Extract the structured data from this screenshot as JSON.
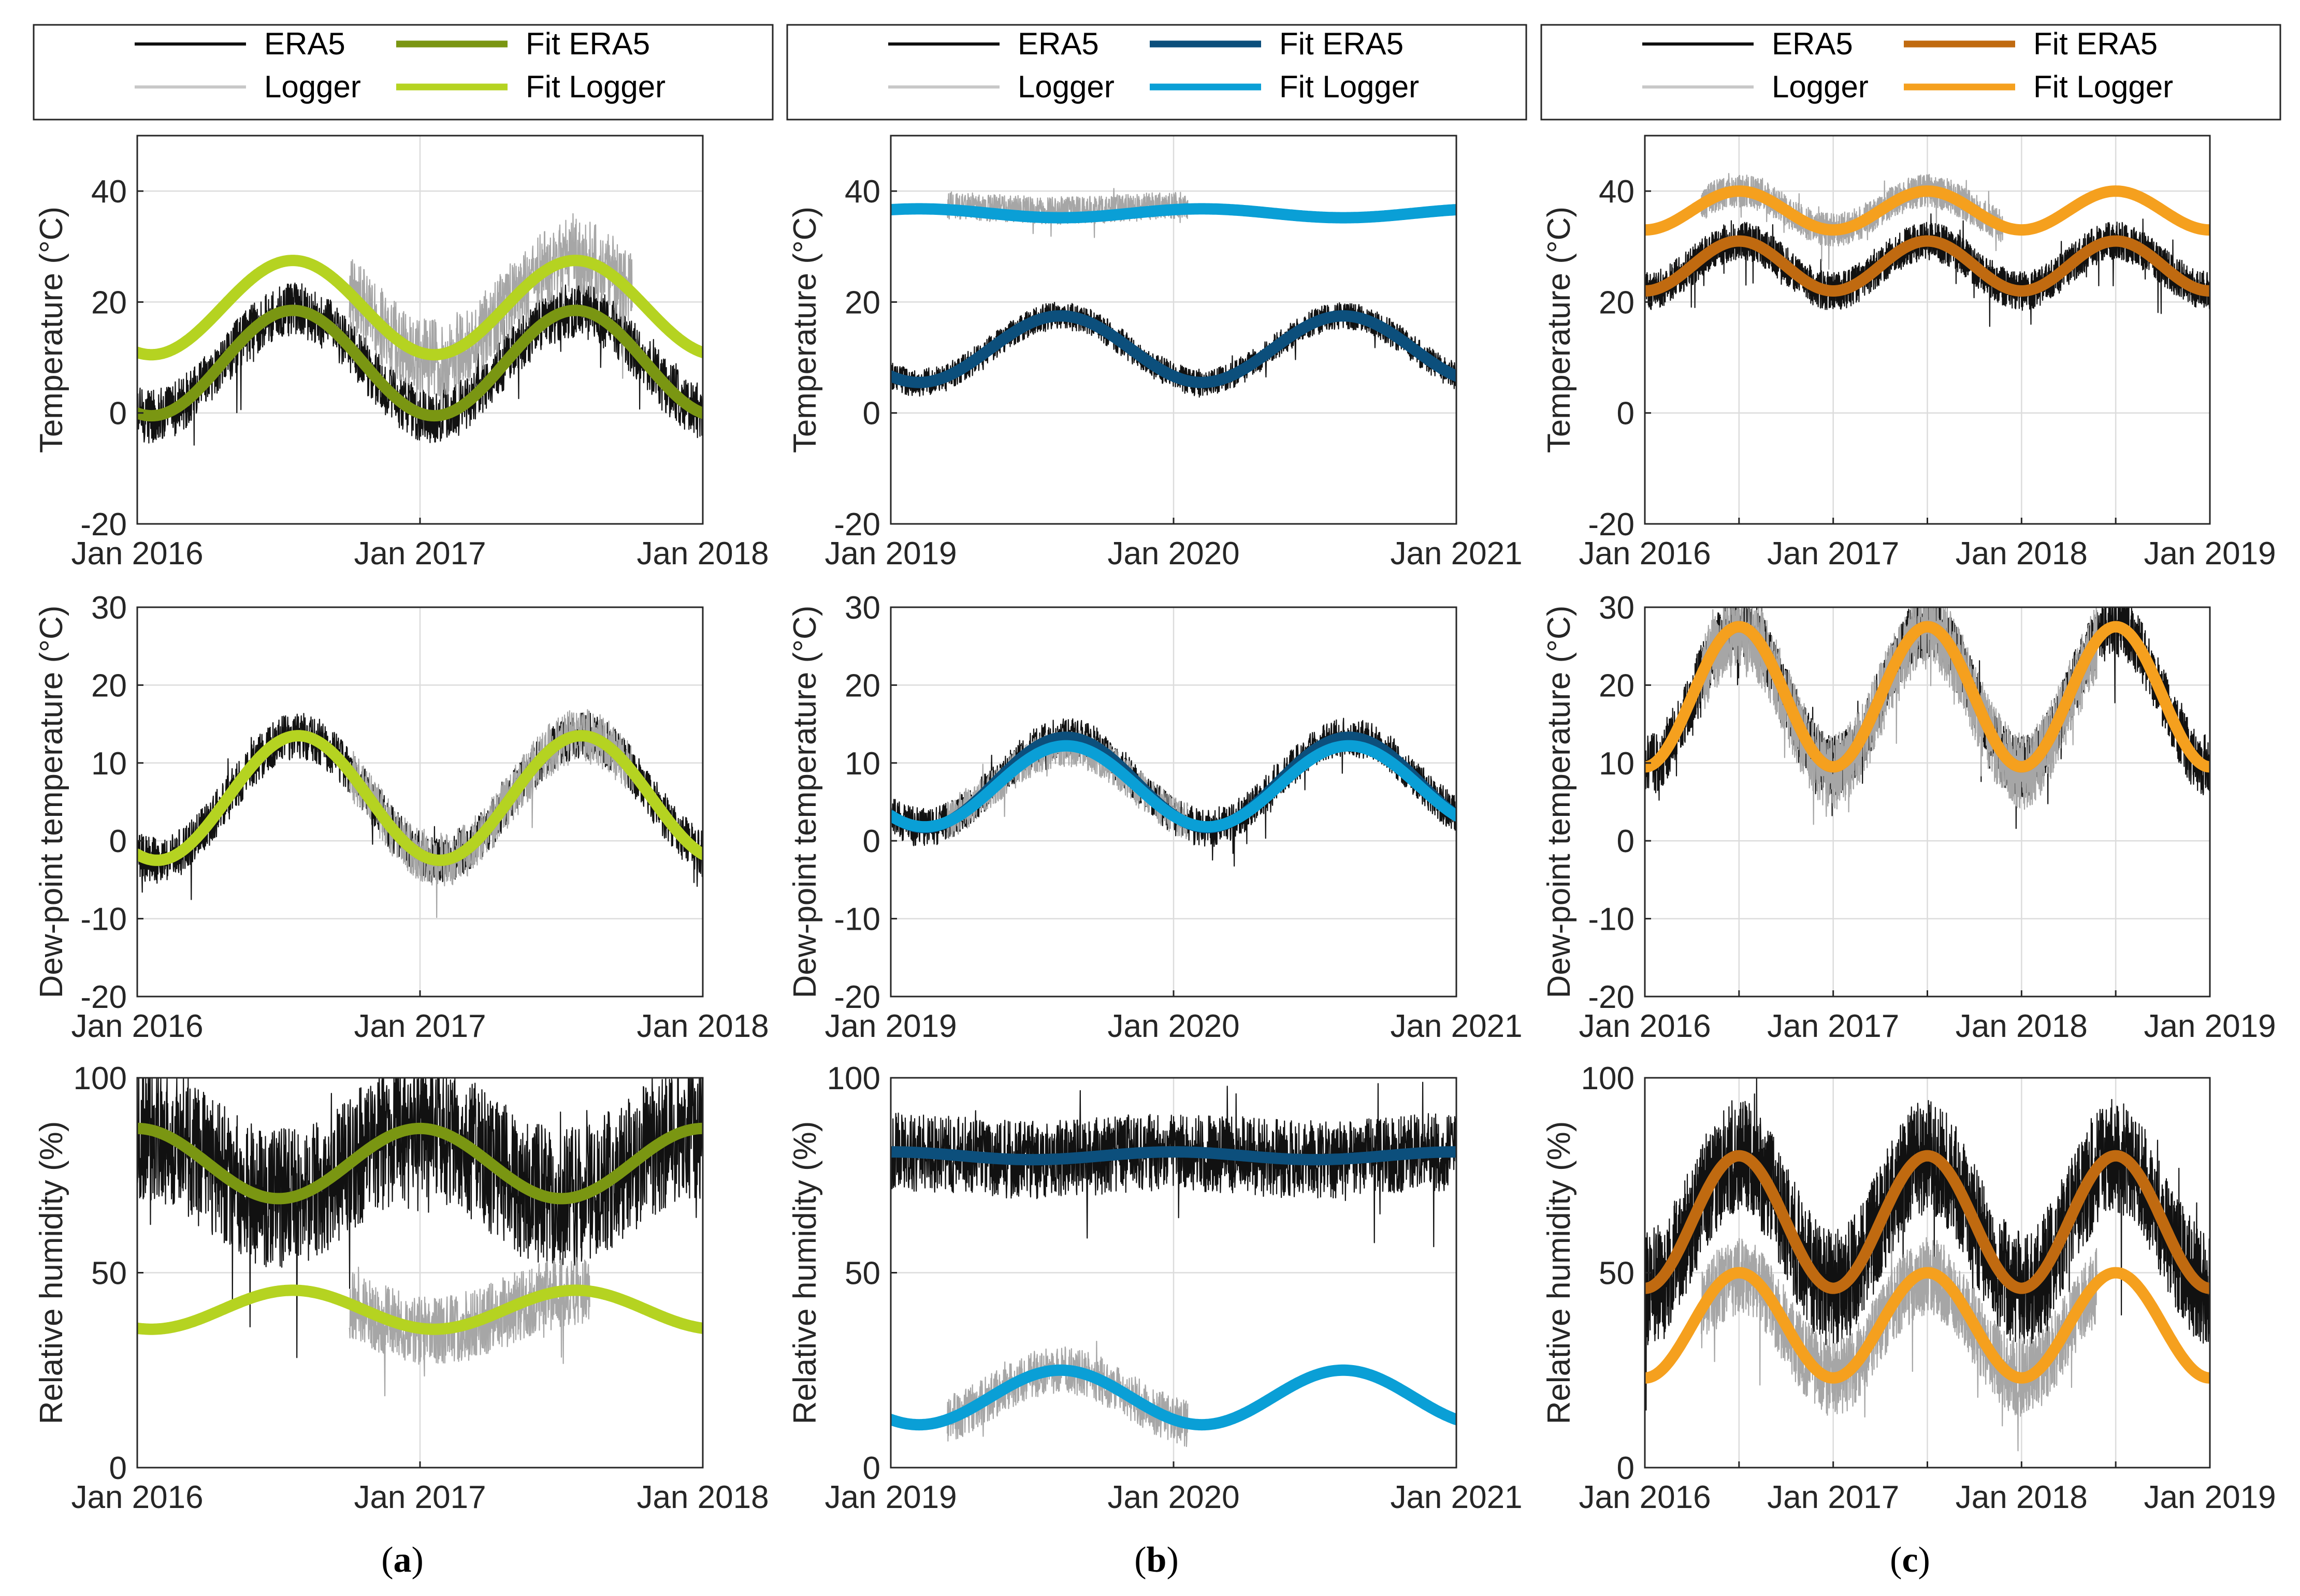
{
  "figure": {
    "captions": [
      "(a)",
      "(b)",
      "(c)"
    ],
    "caption_letters": [
      "a",
      "b",
      "c"
    ]
  },
  "chart_data": [
    {
      "column": "a",
      "row": "temperature",
      "type": "line",
      "ylabel": "Temperature (°C)",
      "ylim": [
        -20,
        50
      ],
      "yticks": [
        -20,
        0,
        20,
        40
      ],
      "xlim": [
        2016,
        2018
      ],
      "xticks": [
        2016,
        2017,
        2018
      ],
      "xticklabels": [
        "Jan 2016",
        "Jan 2017",
        "Jan 2018"
      ],
      "grid": true,
      "era5": {
        "name": "ERA5",
        "mean": 9,
        "amp": 9.5,
        "peak": 0.55,
        "noise": 5,
        "start": 2016,
        "end": 2018,
        "color": "#111111"
      },
      "logger": {
        "name": "Logger",
        "mean": 19,
        "amp": 9,
        "peak": 0.55,
        "noise": 7,
        "start": 2016.75,
        "end": 2017.75,
        "color": "#a6a6a6"
      },
      "fit_era5": {
        "name": "Fit ERA5",
        "mean": 9,
        "amp": 9.5,
        "peak": 0.55,
        "color": "#7a9612"
      },
      "fit_logger": {
        "name": "Fit Logger",
        "mean": 19,
        "amp": 8.5,
        "peak": 0.55,
        "color": "#b5d321"
      }
    },
    {
      "column": "a",
      "row": "dewpoint",
      "type": "line",
      "ylabel": "Dew-point temperature (°C)",
      "ylim": [
        -20,
        30
      ],
      "yticks": [
        -20,
        -10,
        0,
        10,
        20,
        30
      ],
      "xlim": [
        2016,
        2018
      ],
      "xticks": [
        2016,
        2017,
        2018
      ],
      "xticklabels": [
        "Jan 2016",
        "Jan 2017",
        "Jan 2018"
      ],
      "grid": true,
      "era5": {
        "name": "ERA5",
        "mean": 5.5,
        "amp": 8,
        "peak": 0.57,
        "noise": 3,
        "start": 2016,
        "end": 2018,
        "color": "#111111"
      },
      "logger": {
        "name": "Logger",
        "mean": 5.5,
        "amp": 8,
        "peak": 0.57,
        "noise": 3.5,
        "start": 2016.75,
        "end": 2017.75,
        "color": "#a6a6a6"
      },
      "fit_era5": {
        "name": "Fit ERA5",
        "mean": 5.5,
        "amp": 8,
        "peak": 0.57,
        "color": "#7a9612"
      },
      "fit_logger": {
        "name": "Fit Logger",
        "mean": 5.5,
        "amp": 8,
        "peak": 0.57,
        "color": "#b5d321"
      }
    },
    {
      "column": "a",
      "row": "humidity",
      "type": "line",
      "ylabel": "Relative humidity (%)",
      "ylim": [
        0,
        100
      ],
      "yticks": [
        0,
        50,
        100
      ],
      "xlim": [
        2016,
        2018
      ],
      "xticks": [
        2016,
        2017,
        2018
      ],
      "xticklabels": [
        "Jan 2016",
        "Jan 2017",
        "Jan 2018"
      ],
      "grid": true,
      "era5": {
        "name": "ERA5",
        "mean": 78,
        "amp": 9,
        "peak": 0.0,
        "noise": 18,
        "start": 2016,
        "end": 2018,
        "color": "#111111"
      },
      "logger": {
        "name": "Logger",
        "mean": 40,
        "amp": 5,
        "peak": 0.55,
        "noise": 9,
        "start": 2016.75,
        "end": 2017.6,
        "color": "#a6a6a6"
      },
      "fit_era5": {
        "name": "Fit ERA5",
        "mean": 78,
        "amp": 9,
        "peak": 0.0,
        "color": "#7a9612"
      },
      "fit_logger": {
        "name": "Fit Logger",
        "mean": 40.5,
        "amp": 5,
        "peak": 0.55,
        "color": "#b5d321"
      }
    },
    {
      "column": "b",
      "row": "temperature",
      "type": "line",
      "ylabel": "Temperature (°C)",
      "ylim": [
        -20,
        50
      ],
      "yticks": [
        -20,
        0,
        20,
        40
      ],
      "xlim": [
        2019,
        2021
      ],
      "xticks": [
        2019,
        2020,
        2021
      ],
      "xticklabels": [
        "Jan 2019",
        "Jan 2020",
        "Jan 2021"
      ],
      "grid": true,
      "era5": {
        "name": "ERA5",
        "mean": 11.5,
        "amp": 6,
        "peak": 0.6,
        "noise": 2.5,
        "start": 2019,
        "end": 2021,
        "color": "#111111"
      },
      "logger": {
        "name": "Logger",
        "mean": 37,
        "amp": 0.5,
        "peak": 0.1,
        "noise": 2.5,
        "start": 2019.2,
        "end": 2020.05,
        "color": "#a6a6a6"
      },
      "fit_era5": {
        "name": "Fit ERA5",
        "mean": 11.5,
        "amp": 6,
        "peak": 0.6,
        "color": "#0c4f7c"
      },
      "fit_logger": {
        "name": "Fit Logger",
        "mean": 36,
        "amp": 0.8,
        "peak": 0.1,
        "color": "#0a9fd6"
      }
    },
    {
      "column": "b",
      "row": "dewpoint",
      "type": "line",
      "ylabel": "Dew-point temperature (°C)",
      "ylim": [
        -20,
        30
      ],
      "yticks": [
        -20,
        -10,
        0,
        10,
        20,
        30
      ],
      "xlim": [
        2019,
        2021
      ],
      "xticks": [
        2019,
        2020,
        2021
      ],
      "xticklabels": [
        "Jan 2019",
        "Jan 2020",
        "Jan 2021"
      ],
      "grid": true,
      "era5": {
        "name": "ERA5",
        "mean": 7.5,
        "amp": 5.8,
        "peak": 0.62,
        "noise": 2.5,
        "start": 2019,
        "end": 2021,
        "color": "#111111"
      },
      "logger": {
        "name": "Logger",
        "mean": 7,
        "amp": 5,
        "peak": 0.62,
        "noise": 2.5,
        "start": 2019.2,
        "end": 2020.05,
        "color": "#a6a6a6"
      },
      "fit_era5": {
        "name": "Fit ERA5",
        "mean": 7.5,
        "amp": 5.8,
        "peak": 0.62,
        "color": "#0c4f7c"
      },
      "fit_logger": {
        "name": "Fit Logger",
        "mean": 7,
        "amp": 5.2,
        "peak": 0.62,
        "color": "#0a9fd6"
      }
    },
    {
      "column": "b",
      "row": "humidity",
      "type": "line",
      "ylabel": "Relative humidity (%)",
      "ylim": [
        0,
        100
      ],
      "yticks": [
        0,
        50,
        100
      ],
      "xlim": [
        2019,
        2021
      ],
      "xticks": [
        2019,
        2020,
        2021
      ],
      "xticklabels": [
        "Jan 2019",
        "Jan 2020",
        "Jan 2021"
      ],
      "grid": true,
      "era5": {
        "name": "ERA5",
        "mean": 80,
        "amp": 1,
        "peak": 0.0,
        "noise": 10,
        "start": 2019,
        "end": 2021,
        "color": "#111111"
      },
      "logger": {
        "name": "Logger",
        "mean": 18,
        "amp": 7,
        "peak": 0.6,
        "noise": 6,
        "start": 2019.2,
        "end": 2020.05,
        "color": "#a6a6a6"
      },
      "fit_era5": {
        "name": "Fit ERA5",
        "mean": 80,
        "amp": 1,
        "peak": 0.0,
        "color": "#0c4f7c"
      },
      "fit_logger": {
        "name": "Fit Logger",
        "mean": 18,
        "amp": 7,
        "peak": 0.6,
        "color": "#0a9fd6"
      }
    },
    {
      "column": "c",
      "row": "temperature",
      "type": "line",
      "ylabel": "Temperature (°C)",
      "ylim": [
        -20,
        50
      ],
      "yticks": [
        -20,
        0,
        20,
        40
      ],
      "xlim": [
        2016,
        2019
      ],
      "xticks": [
        2016,
        2016.5,
        2017,
        2017.5,
        2018,
        2018.5,
        2019
      ],
      "xticklabels": [
        "Jan 2016",
        "Jan 2017",
        "Jan 2018",
        "Jan 2019"
      ],
      "label_ticks": [
        2016,
        2017,
        2018,
        2019
      ],
      "grid": true,
      "era5": {
        "name": "ERA5",
        "mean": 26.5,
        "amp": 4.5,
        "peak": 0.5,
        "noise": 3.5,
        "start": 2016,
        "end": 2019,
        "color": "#111111"
      },
      "logger": {
        "name": "Logger",
        "mean": 36.5,
        "amp": 3.5,
        "peak": 0.5,
        "noise": 3,
        "start": 2016.3,
        "end": 2017.9,
        "color": "#a6a6a6"
      },
      "fit_era5": {
        "name": "Fit ERA5",
        "mean": 26.5,
        "amp": 4.5,
        "peak": 0.5,
        "color": "#c06a10"
      },
      "fit_logger": {
        "name": "Fit Logger",
        "mean": 36.5,
        "amp": 3.5,
        "peak": 0.5,
        "color": "#f5a01e"
      }
    },
    {
      "column": "c",
      "row": "dewpoint",
      "type": "line",
      "ylabel": "Dew-point temperature (°C)",
      "ylim": [
        -20,
        30
      ],
      "yticks": [
        -20,
        -10,
        0,
        10,
        20,
        30
      ],
      "xlim": [
        2016,
        2019
      ],
      "xticks": [
        2016,
        2016.5,
        2017,
        2017.5,
        2018,
        2018.5,
        2019
      ],
      "xticklabels": [
        "Jan 2016",
        "Jan 2017",
        "Jan 2018",
        "Jan 2019"
      ],
      "label_ticks": [
        2016,
        2017,
        2018,
        2019
      ],
      "grid": true,
      "era5": {
        "name": "ERA5",
        "mean": 18.5,
        "amp": 9,
        "peak": 0.5,
        "noise": 4,
        "start": 2016,
        "end": 2019,
        "color": "#111111"
      },
      "logger": {
        "name": "Logger",
        "mean": 18,
        "amp": 9,
        "peak": 0.5,
        "noise": 5,
        "start": 2016.3,
        "end": 2018.4,
        "color": "#a6a6a6"
      },
      "fit_era5": {
        "name": "Fit ERA5",
        "mean": 18.5,
        "amp": 9,
        "peak": 0.5,
        "color": "#c06a10"
      },
      "fit_logger": {
        "name": "Fit Logger",
        "mean": 18.5,
        "amp": 9,
        "peak": 0.5,
        "color": "#f5a01e"
      }
    },
    {
      "column": "c",
      "row": "humidity",
      "type": "line",
      "ylabel": "Relative humidity (%)",
      "ylim": [
        0,
        100
      ],
      "yticks": [
        0,
        50,
        100
      ],
      "xlim": [
        2016,
        2019
      ],
      "xticks": [
        2016,
        2016.5,
        2017,
        2017.5,
        2018,
        2018.5,
        2019
      ],
      "xticklabels": [
        "Jan 2016",
        "Jan 2017",
        "Jan 2018",
        "Jan 2019"
      ],
      "label_ticks": [
        2016,
        2017,
        2018,
        2019
      ],
      "grid": true,
      "era5": {
        "name": "ERA5",
        "mean": 63,
        "amp": 17,
        "peak": 0.5,
        "noise": 15,
        "start": 2016,
        "end": 2019,
        "color": "#111111"
      },
      "logger": {
        "name": "Logger",
        "mean": 36,
        "amp": 13,
        "peak": 0.5,
        "noise": 10,
        "start": 2016.3,
        "end": 2018.4,
        "color": "#a6a6a6"
      },
      "fit_era5": {
        "name": "Fit ERA5",
        "mean": 63,
        "amp": 17,
        "peak": 0.5,
        "color": "#c06a10"
      },
      "fit_logger": {
        "name": "Fit Logger",
        "mean": 36.5,
        "amp": 13.5,
        "peak": 0.5,
        "color": "#f5a01e"
      }
    }
  ],
  "legends": [
    {
      "column": "a",
      "items": [
        {
          "label": "ERA5",
          "color": "#111111"
        },
        {
          "label": "Fit ERA5",
          "color": "#7a9612"
        },
        {
          "label": "Logger",
          "color": "#c8c8c8"
        },
        {
          "label": "Fit Logger",
          "color": "#b5d321"
        }
      ]
    },
    {
      "column": "b",
      "items": [
        {
          "label": "ERA5",
          "color": "#111111"
        },
        {
          "label": "Fit ERA5",
          "color": "#0c4f7c"
        },
        {
          "label": "Logger",
          "color": "#c8c8c8"
        },
        {
          "label": "Fit Logger",
          "color": "#0a9fd6"
        }
      ]
    },
    {
      "column": "c",
      "items": [
        {
          "label": "ERA5",
          "color": "#111111"
        },
        {
          "label": "Fit ERA5",
          "color": "#c06a10"
        },
        {
          "label": "Logger",
          "color": "#c8c8c8"
        },
        {
          "label": "Fit Logger",
          "color": "#f5a01e"
        }
      ]
    }
  ]
}
